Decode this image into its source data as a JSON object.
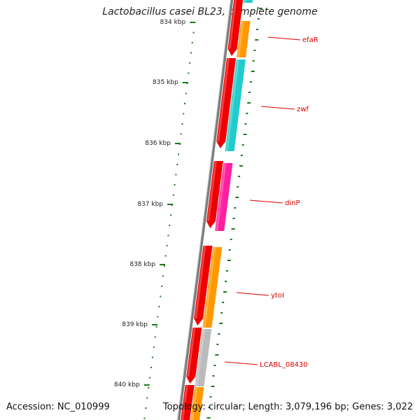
{
  "title": "Lactobacillus casei BL23, complete genome",
  "footer": {
    "accession": "Accession: NC_010999",
    "summary": "Topology: circular; Length: 3,079,196 bp; Genes: 3,022"
  },
  "colors": {
    "backbone": "#7a7a7a",
    "ruler_tick": "#1a7a1a",
    "label": "#dd0000",
    "tick_label": "#222222",
    "red": "#ee0000",
    "orange": "#ff9900",
    "cyan": "#22cccc",
    "magenta": "#ff1fa0",
    "gray": "#bbbbbb"
  },
  "ruler": {
    "ticks": [
      "834 kbp",
      "835 kbp",
      "836 kbp",
      "837 kbp",
      "838 kbp",
      "839 kbp",
      "840 kbp"
    ]
  },
  "genes": [
    {
      "name": "efaR",
      "color": "orange"
    },
    {
      "name": "zwf",
      "color": "cyan"
    },
    {
      "name": "dinP",
      "color": "magenta"
    },
    {
      "name": "ytoI",
      "color": "orange"
    },
    {
      "name": "LCABL_08430",
      "color": "gray"
    }
  ]
}
